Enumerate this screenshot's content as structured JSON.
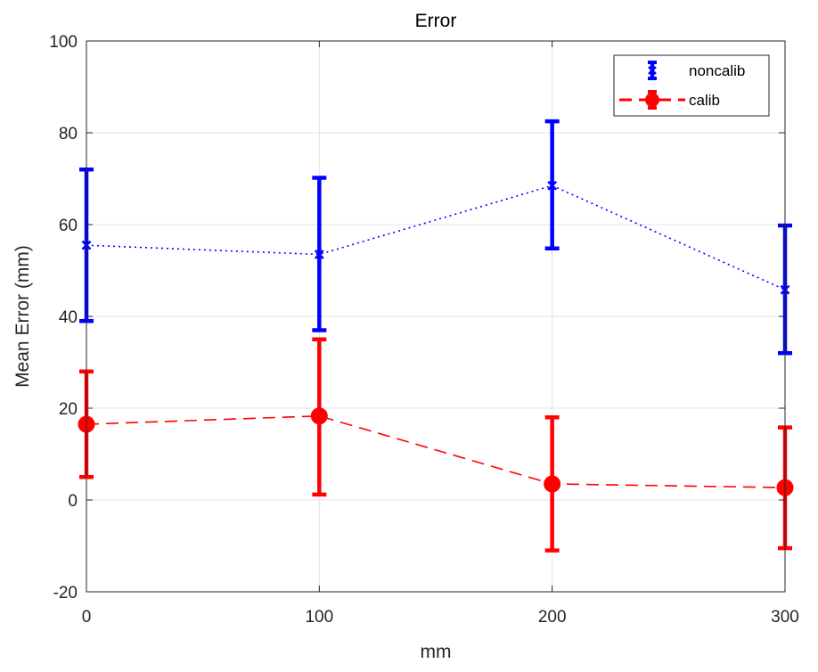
{
  "chart_data": {
    "type": "line",
    "title": "Error",
    "xlabel": "mm",
    "ylabel": "Mean Error (mm)",
    "xlim": [
      0,
      300
    ],
    "ylim": [
      -20,
      100
    ],
    "x_ticks": [
      0,
      100,
      200,
      300
    ],
    "y_ticks": [
      -20,
      0,
      20,
      40,
      60,
      80,
      100
    ],
    "grid": true,
    "legend_position": "top-right",
    "series": [
      {
        "name": "noncalib",
        "color": "#0000ff",
        "line_style": "dotted",
        "marker": "x",
        "x": [
          0,
          100,
          200,
          300
        ],
        "y": [
          55.5,
          53.5,
          68.5,
          45.8
        ],
        "error_low": [
          39,
          37,
          54.8,
          32
        ],
        "error_high": [
          72,
          70.2,
          82.5,
          59.8
        ]
      },
      {
        "name": "calib",
        "color": "#ff0000",
        "line_style": "dashed",
        "marker": "circle",
        "x": [
          0,
          100,
          200,
          300
        ],
        "y": [
          16.5,
          18.3,
          3.5,
          2.7
        ],
        "error_low": [
          5,
          1.2,
          -11,
          -10.5
        ],
        "error_high": [
          28,
          35,
          18,
          15.8
        ]
      }
    ]
  }
}
